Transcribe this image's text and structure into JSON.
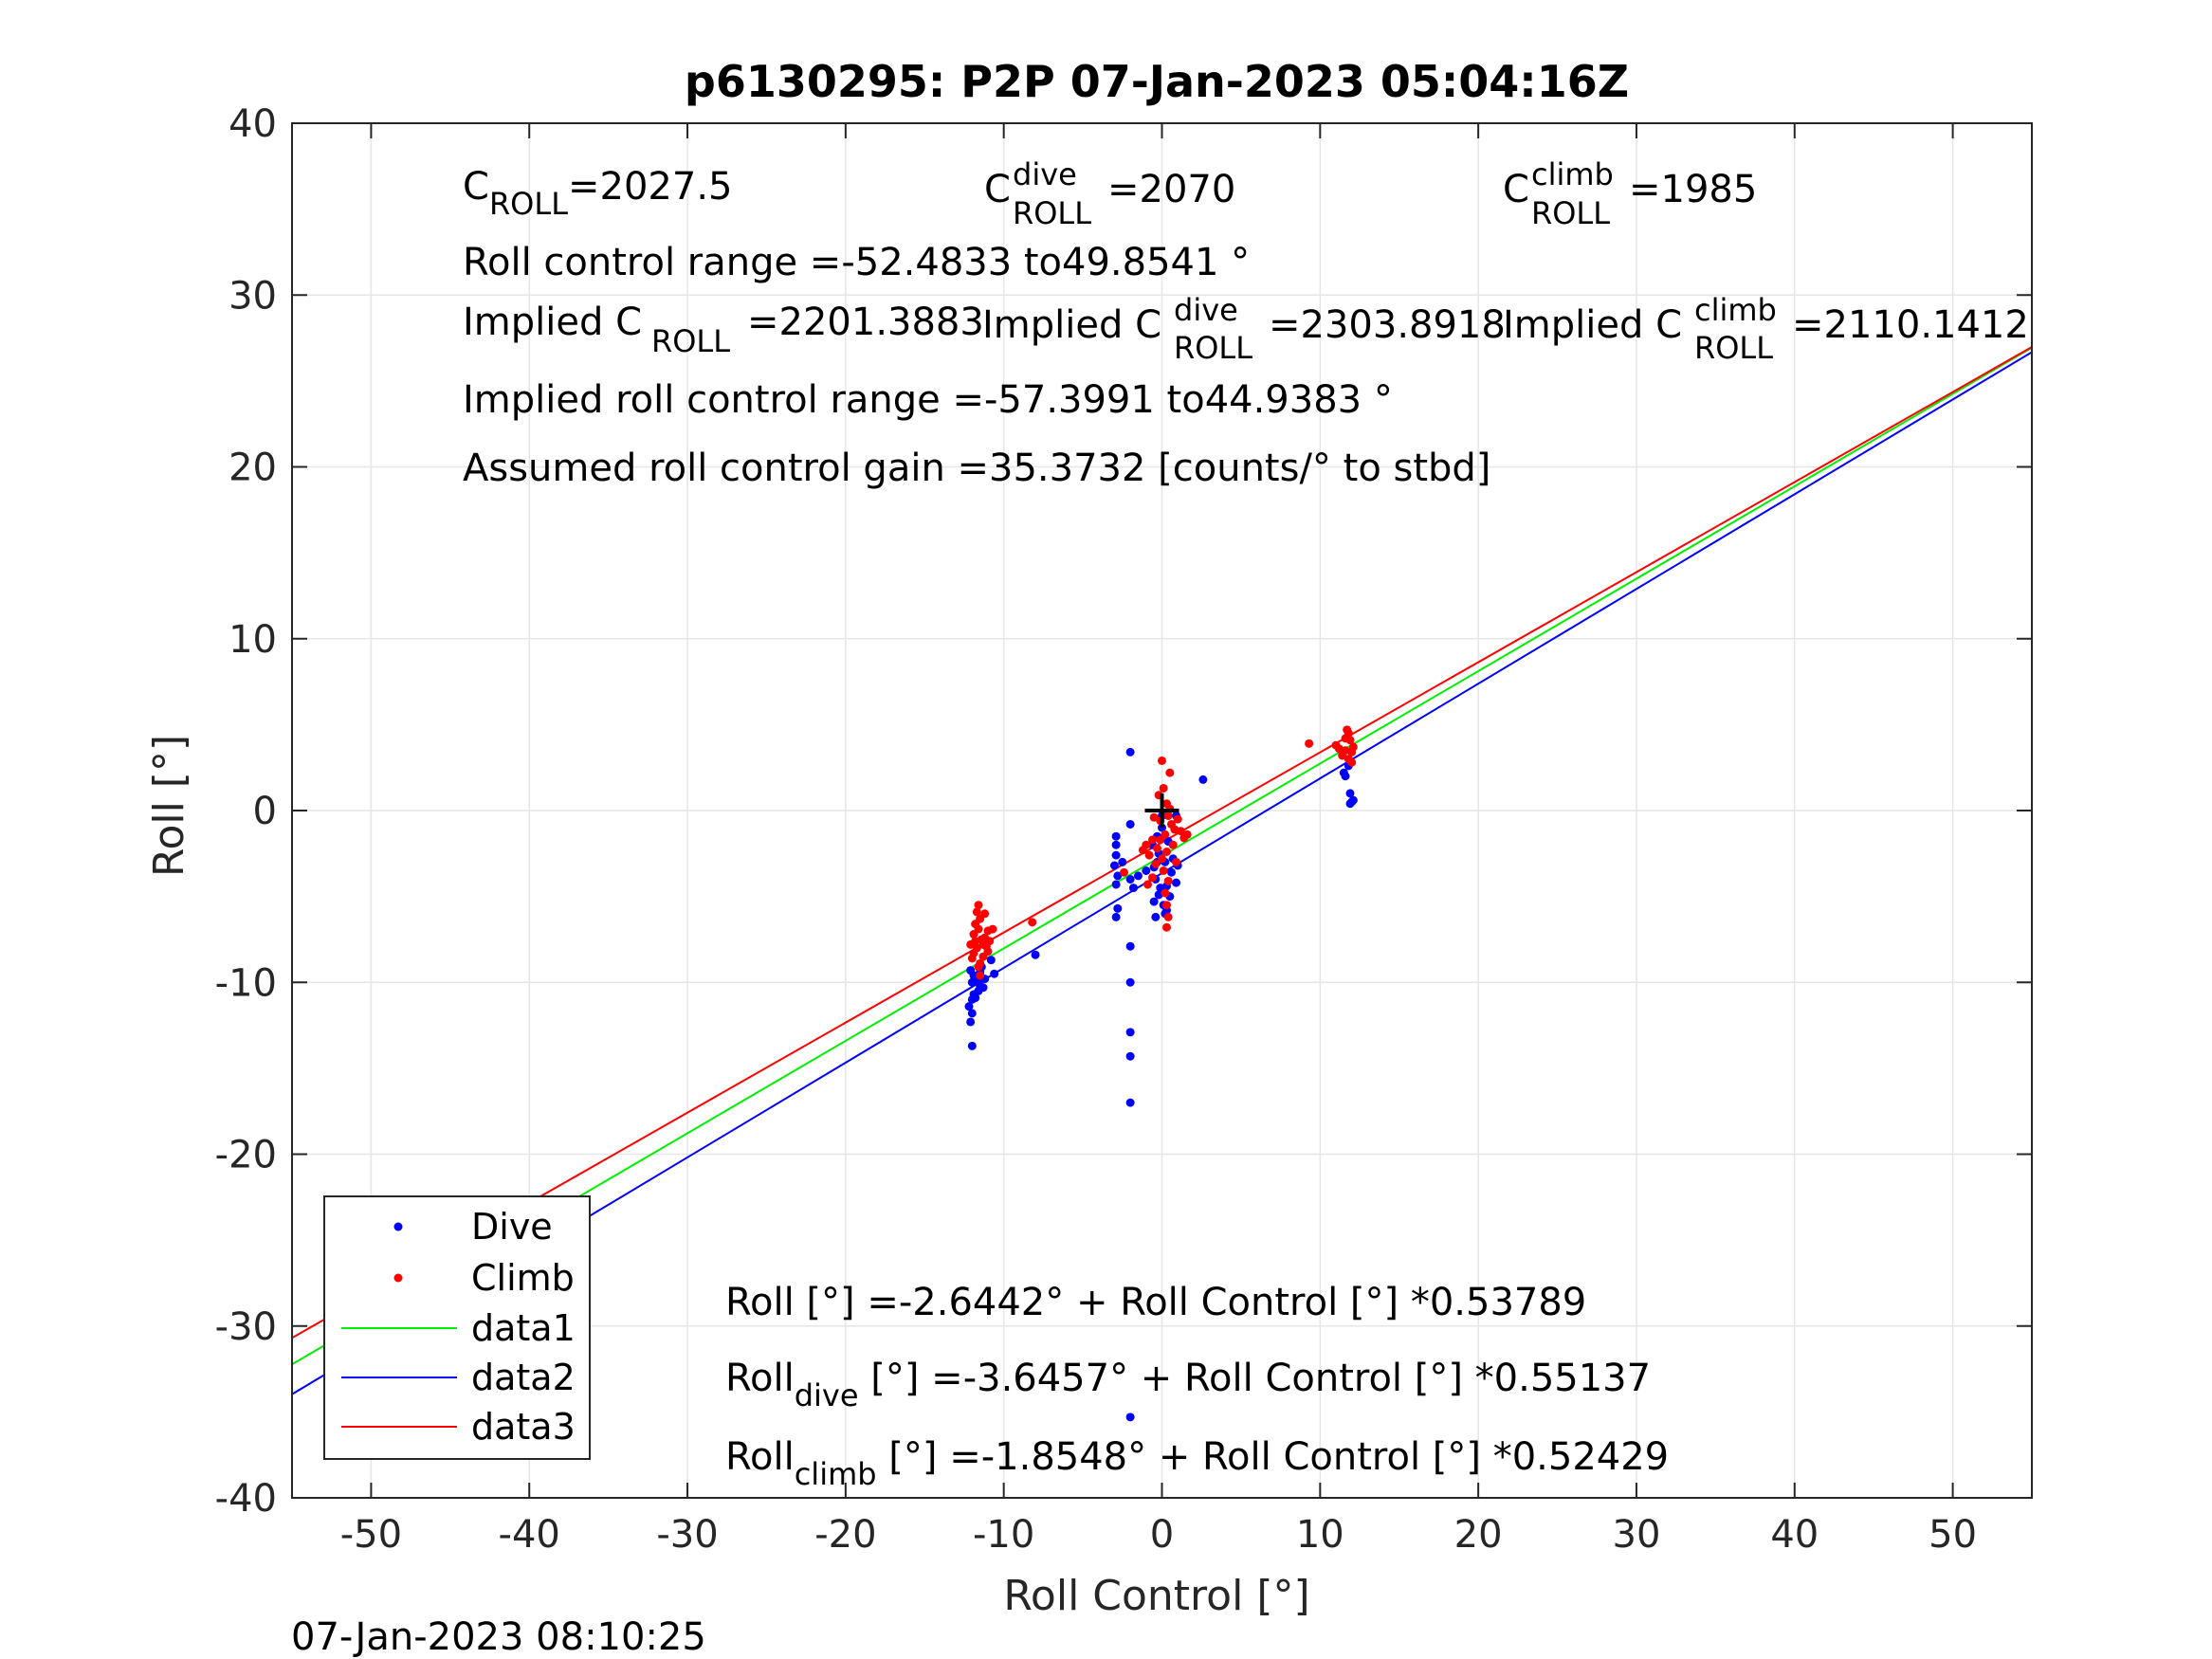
{
  "timestamp": "07-Jan-2023 08:10:25",
  "annotations": {
    "c_roll": "=2027.5",
    "c_roll_dive": "=2070",
    "c_roll_climb": "=1985",
    "roll_control_range": "Roll control range =-52.4833 to49.8541 °",
    "implied_c_roll": "=2201.3883",
    "implied_c_roll_dive": "=2303.8918",
    "implied_c_roll_climb": "=2110.1412",
    "implied_range": "Implied roll control range =-57.3991 to44.9383 °",
    "gain": "Assumed roll control gain =35.3732 [counts/° to stbd]",
    "fit_all": "Roll [°] =-2.6442° + Roll Control [°] *0.53789",
    "fit_dive_tail": " [°] =-3.6457° + Roll Control [°] *0.55137",
    "fit_climb_tail": " [°] =-1.8548° + Roll Control [°] *0.52429",
    "sym_C": "C",
    "sym_roll": "ROLL",
    "sym_dive": "dive",
    "sym_climb": "climb",
    "implied_prefix": "Implied C",
    "roll_word": "Roll"
  },
  "colors": {
    "dive": "#0000ff",
    "climb": "#ff0000",
    "data1": "#00ee00",
    "data2": "#0000ff",
    "data3": "#ff0000",
    "grid": "#e6e6e6",
    "axis": "#262626",
    "mean_marker": "#000000"
  },
  "chart_data": {
    "type": "scatter",
    "title": "p6130295: P2P 07-Jan-2023 05:04:16Z",
    "xlabel": "Roll Control [°]",
    "ylabel": "Roll [°]",
    "xlim": [
      -55,
      55
    ],
    "ylim": [
      -40,
      40
    ],
    "xticks": [
      -50,
      -40,
      -30,
      -20,
      -10,
      0,
      10,
      20,
      30,
      40,
      50
    ],
    "yticks": [
      -40,
      -30,
      -20,
      -10,
      0,
      10,
      20,
      30,
      40
    ],
    "grid": true,
    "legend_position": "bottom-left",
    "legend": [
      "Dive",
      "Climb",
      "data1",
      "data2",
      "data3"
    ],
    "mean_marker": {
      "x": 0,
      "y": 0
    },
    "series": [
      {
        "name": "Dive",
        "kind": "points",
        "points": [
          [
            -12,
            -13.7
          ],
          [
            -12.1,
            -12.3
          ],
          [
            -12,
            -11.8
          ],
          [
            -12.2,
            -11.4
          ],
          [
            -12,
            -11.0
          ],
          [
            -11.9,
            -10.7
          ],
          [
            -11.6,
            -10.5
          ],
          [
            -11.5,
            -10.2
          ],
          [
            -11.7,
            -9.9
          ],
          [
            -11.9,
            -9.6
          ],
          [
            -12.1,
            -9.3
          ],
          [
            -11.4,
            -9.1
          ],
          [
            -11.2,
            -9.8
          ],
          [
            -11.3,
            -10.3
          ],
          [
            -12.0,
            -10.0
          ],
          [
            -11.8,
            -10.9
          ],
          [
            -11.5,
            -9.4
          ],
          [
            -10.6,
            -9.5
          ],
          [
            -10.8,
            -8.7
          ],
          [
            -8,
            -8.4
          ],
          [
            -2.9,
            -1.5
          ],
          [
            -2.9,
            -2.0
          ],
          [
            -2.9,
            -2.6
          ],
          [
            -3.0,
            -3.2
          ],
          [
            -2.8,
            -3.8
          ],
          [
            -2.9,
            -4.3
          ],
          [
            -2.8,
            -5.7
          ],
          [
            -2.9,
            -6.2
          ],
          [
            -2.5,
            -3.0
          ],
          [
            -2,
            -7.9
          ],
          [
            -2,
            -10.0
          ],
          [
            -2,
            -12.9
          ],
          [
            -2,
            -14.3
          ],
          [
            -2,
            -17.0
          ],
          [
            -2,
            -35.3
          ],
          [
            -2,
            3.4
          ],
          [
            -2,
            -4.0
          ],
          [
            -2.0,
            -0.8
          ],
          [
            -1.8,
            -4.5
          ],
          [
            -1.5,
            -3.8
          ],
          [
            -1.0,
            -3.5
          ],
          [
            -0.5,
            -3.3
          ],
          [
            -0.6,
            -2.0
          ],
          [
            -0.4,
            -4.0
          ],
          [
            -0.2,
            -4.9
          ],
          [
            -0.5,
            -5.3
          ],
          [
            -0.4,
            -6.2
          ],
          [
            -0.3,
            -1.5
          ],
          [
            0.0,
            -1.0
          ],
          [
            0.2,
            -3.0
          ],
          [
            0.3,
            -4.4
          ],
          [
            0.1,
            -5.5
          ],
          [
            0.5,
            -5.0
          ],
          [
            0.6,
            -3.6
          ],
          [
            0.2,
            -6.0
          ],
          [
            -0.2,
            -2.5
          ],
          [
            0.4,
            -1.8
          ],
          [
            0.7,
            -2.8
          ],
          [
            0.9,
            -4.2
          ],
          [
            1.0,
            -3.2
          ],
          [
            -0.3,
            -3.0
          ],
          [
            0.0,
            -0.3
          ],
          [
            -0.1,
            -4.5
          ],
          [
            0.3,
            -5.8
          ],
          [
            2.6,
            1.8
          ],
          [
            0.9,
            -0.3
          ],
          [
            11.5,
            2.2
          ],
          [
            11.6,
            2.0
          ],
          [
            11.9,
            1.0
          ],
          [
            12.0,
            0.5
          ],
          [
            11.9,
            0.4
          ],
          [
            12.1,
            0.6
          ],
          [
            11.8,
            2.6
          ]
        ]
      },
      {
        "name": "Climb",
        "kind": "points",
        "points": [
          [
            -11.6,
            -5.5
          ],
          [
            -11.7,
            -5.9
          ],
          [
            -11.5,
            -6.3
          ],
          [
            -11.8,
            -6.6
          ],
          [
            -11.6,
            -6.9
          ],
          [
            -11.9,
            -7.2
          ],
          [
            -11.4,
            -7.5
          ],
          [
            -11.3,
            -7.8
          ],
          [
            -11.7,
            -8.0
          ],
          [
            -11.9,
            -8.3
          ],
          [
            -12.0,
            -8.6
          ],
          [
            -11.5,
            -8.9
          ],
          [
            -11.2,
            -7.4
          ],
          [
            -11.0,
            -7.0
          ],
          [
            -11.1,
            -7.9
          ],
          [
            -11.3,
            -8.5
          ],
          [
            -11.6,
            -9.1
          ],
          [
            -11.8,
            -7.6
          ],
          [
            -12.1,
            -7.8
          ],
          [
            -11.0,
            -8.2
          ],
          [
            -10.9,
            -7.6
          ],
          [
            -10.7,
            -6.9
          ],
          [
            -11.5,
            -9.6
          ],
          [
            -11.2,
            -6.0
          ],
          [
            -8.2,
            -6.5
          ],
          [
            -2.4,
            -3.6
          ],
          [
            -1.0,
            -2.0
          ],
          [
            -1.2,
            -2.3
          ],
          [
            -0.8,
            -2.6
          ],
          [
            -0.6,
            -1.7
          ],
          [
            -0.3,
            -2.2
          ],
          [
            0.0,
            2.9
          ],
          [
            0.5,
            2.2
          ],
          [
            0.1,
            1.3
          ],
          [
            -0.2,
            0.9
          ],
          [
            0.3,
            0.4
          ],
          [
            0.5,
            0.1
          ],
          [
            0.4,
            -0.3
          ],
          [
            -0.1,
            -0.6
          ],
          [
            0.6,
            -0.8
          ],
          [
            0.8,
            -1.1
          ],
          [
            0.2,
            -1.4
          ],
          [
            -0.1,
            -1.7
          ],
          [
            0.7,
            -2.0
          ],
          [
            0.3,
            -2.4
          ],
          [
            0.0,
            -2.8
          ],
          [
            -0.4,
            -3.1
          ],
          [
            0.1,
            -3.5
          ],
          [
            0.4,
            -4.1
          ],
          [
            0.2,
            -4.8
          ],
          [
            0.3,
            -5.5
          ],
          [
            0.4,
            -6.2
          ],
          [
            0.3,
            -6.8
          ],
          [
            1.2,
            -1.2
          ],
          [
            1.4,
            -1.6
          ],
          [
            1.6,
            -1.4
          ],
          [
            -0.6,
            -3.9
          ],
          [
            -0.9,
            -4.3
          ],
          [
            0.9,
            -3.0
          ],
          [
            1.0,
            -0.5
          ],
          [
            -0.5,
            -0.4
          ],
          [
            9.3,
            3.9
          ],
          [
            11.0,
            3.8
          ],
          [
            11.2,
            3.6
          ],
          [
            11.4,
            3.2
          ],
          [
            11.6,
            4.2
          ],
          [
            11.7,
            4.7
          ],
          [
            11.8,
            4.5
          ],
          [
            11.9,
            4.1
          ],
          [
            12.0,
            3.4
          ],
          [
            12.0,
            2.8
          ],
          [
            11.8,
            3.0
          ],
          [
            12.1,
            3.7
          ],
          [
            11.6,
            3.5
          ]
        ]
      },
      {
        "name": "data1",
        "kind": "line",
        "x": [
          -55,
          55
        ],
        "y": [
          -32.23,
          26.94
        ]
      },
      {
        "name": "data2",
        "kind": "line",
        "x": [
          -55,
          55
        ],
        "y": [
          -33.97,
          26.68
        ]
      },
      {
        "name": "data3",
        "kind": "line",
        "x": [
          -55,
          55
        ],
        "y": [
          -30.69,
          26.98
        ]
      }
    ]
  }
}
